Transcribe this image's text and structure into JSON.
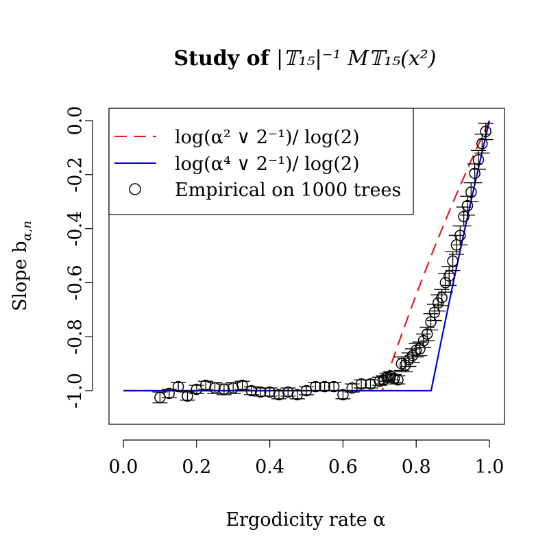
{
  "chart_data": {
    "type": "line",
    "title_prefix": "Study of ",
    "title_math": "|𝕋₁₅|⁻¹ M𝕋₁₅(x²)",
    "xlabel": "Ergodicity rate α",
    "ylabel": "Slope b",
    "ylabel_sub": "α,n",
    "xlim": [
      0.0,
      1.0
    ],
    "ylim": [
      -1.1,
      0.0
    ],
    "x_ticks": [
      0.0,
      0.2,
      0.4,
      0.6,
      0.8,
      1.0
    ],
    "x_tick_labels": [
      "0.0",
      "0.2",
      "0.4",
      "0.6",
      "0.8",
      "1.0"
    ],
    "y_ticks": [
      0.0,
      -0.2,
      -0.4,
      -0.6,
      -0.8,
      -1.0
    ],
    "y_tick_labels": [
      "0.0",
      "-0.2",
      "-0.4",
      "-0.6",
      "-0.8",
      "-1.0"
    ],
    "grid": false,
    "legend_placement": "top-left",
    "series": [
      {
        "name": "log(α² ∨ 2⁻¹)/ log(2)",
        "style": "dashed",
        "color": "#e31a1c",
        "x": [
          0.0,
          0.7071,
          0.75,
          0.8,
          0.85,
          0.9,
          0.95,
          1.0
        ],
        "y": [
          -1.0,
          -1.0,
          -0.83,
          -0.644,
          -0.469,
          -0.304,
          -0.148,
          0.0
        ]
      },
      {
        "name": "log(α⁴ ∨ 2⁻¹)/ log(2)",
        "style": "solid",
        "color": "#0000cd",
        "x": [
          0.0,
          0.8409,
          0.87,
          0.9,
          0.93,
          0.95,
          0.97,
          1.0
        ],
        "y": [
          -1.0,
          -1.0,
          -0.804,
          -0.608,
          -0.419,
          -0.296,
          -0.176,
          0.0
        ]
      },
      {
        "name": "Empirical on 1000 trees",
        "style": "points",
        "color": "#000000",
        "x": [
          0.1,
          0.125,
          0.15,
          0.175,
          0.2,
          0.225,
          0.25,
          0.275,
          0.3,
          0.325,
          0.35,
          0.375,
          0.4,
          0.425,
          0.45,
          0.475,
          0.5,
          0.525,
          0.55,
          0.575,
          0.6,
          0.625,
          0.65,
          0.675,
          0.7,
          0.71,
          0.72,
          0.73,
          0.74,
          0.75,
          0.76,
          0.77,
          0.78,
          0.79,
          0.8,
          0.81,
          0.82,
          0.83,
          0.84,
          0.85,
          0.86,
          0.87,
          0.88,
          0.89,
          0.9,
          0.91,
          0.92,
          0.93,
          0.94,
          0.95,
          0.96,
          0.97,
          0.98,
          0.99
        ],
        "y": [
          -1.025,
          -1.01,
          -0.985,
          -1.02,
          -0.995,
          -0.98,
          -0.99,
          -0.995,
          -0.99,
          -0.98,
          -1.0,
          -1.005,
          -1.005,
          -1.015,
          -1.005,
          -1.015,
          -1.0,
          -0.985,
          -0.985,
          -0.985,
          -1.015,
          -0.99,
          -0.975,
          -0.975,
          -0.965,
          -0.96,
          -0.95,
          -0.945,
          -0.955,
          -0.96,
          -0.9,
          -0.905,
          -0.885,
          -0.87,
          -0.85,
          -0.845,
          -0.815,
          -0.79,
          -0.745,
          -0.71,
          -0.675,
          -0.655,
          -0.6,
          -0.575,
          -0.52,
          -0.46,
          -0.425,
          -0.355,
          -0.315,
          -0.265,
          -0.195,
          -0.145,
          -0.085,
          -0.04
        ],
        "err": [
          0.02,
          0.015,
          0.015,
          0.015,
          0.015,
          0.015,
          0.02,
          0.02,
          0.02,
          0.015,
          0.015,
          0.015,
          0.015,
          0.015,
          0.015,
          0.015,
          0.015,
          0.015,
          0.015,
          0.015,
          0.015,
          0.015,
          0.015,
          0.015,
          0.015,
          0.015,
          0.015,
          0.015,
          0.015,
          0.015,
          0.025,
          0.025,
          0.025,
          0.025,
          0.025,
          0.025,
          0.025,
          0.025,
          0.03,
          0.03,
          0.03,
          0.03,
          0.035,
          0.035,
          0.035,
          0.035,
          0.035,
          0.035,
          0.035,
          0.035,
          0.035,
          0.035,
          0.035,
          0.03
        ]
      }
    ]
  }
}
